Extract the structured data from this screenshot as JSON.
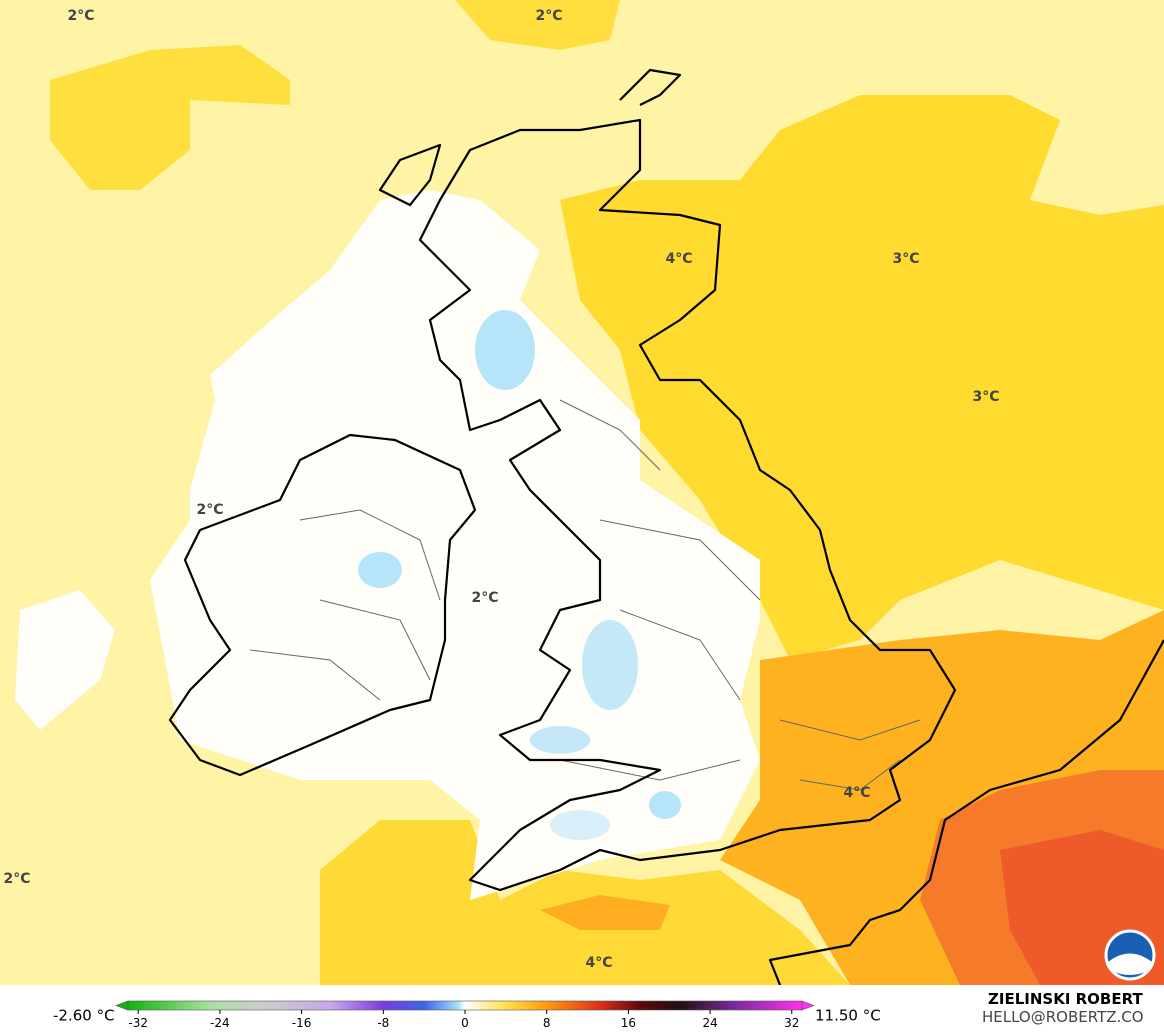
{
  "map": {
    "labels": [
      "2°C",
      "2°C",
      "4°C",
      "3°C",
      "3°C",
      "2°C",
      "2°C",
      "4°C",
      "2°C",
      "4°C"
    ]
  },
  "legend": {
    "min_label": "-2.60 °C",
    "max_label": "11.50 °C",
    "range": [
      -33,
      33
    ],
    "ticks": [
      -32,
      -24,
      -16,
      -8,
      0,
      8,
      16,
      24,
      32
    ]
  },
  "credits": {
    "author": "ZIELINSKI ROBERT",
    "contact": "HELLO@ROBERTZ.CO"
  }
}
